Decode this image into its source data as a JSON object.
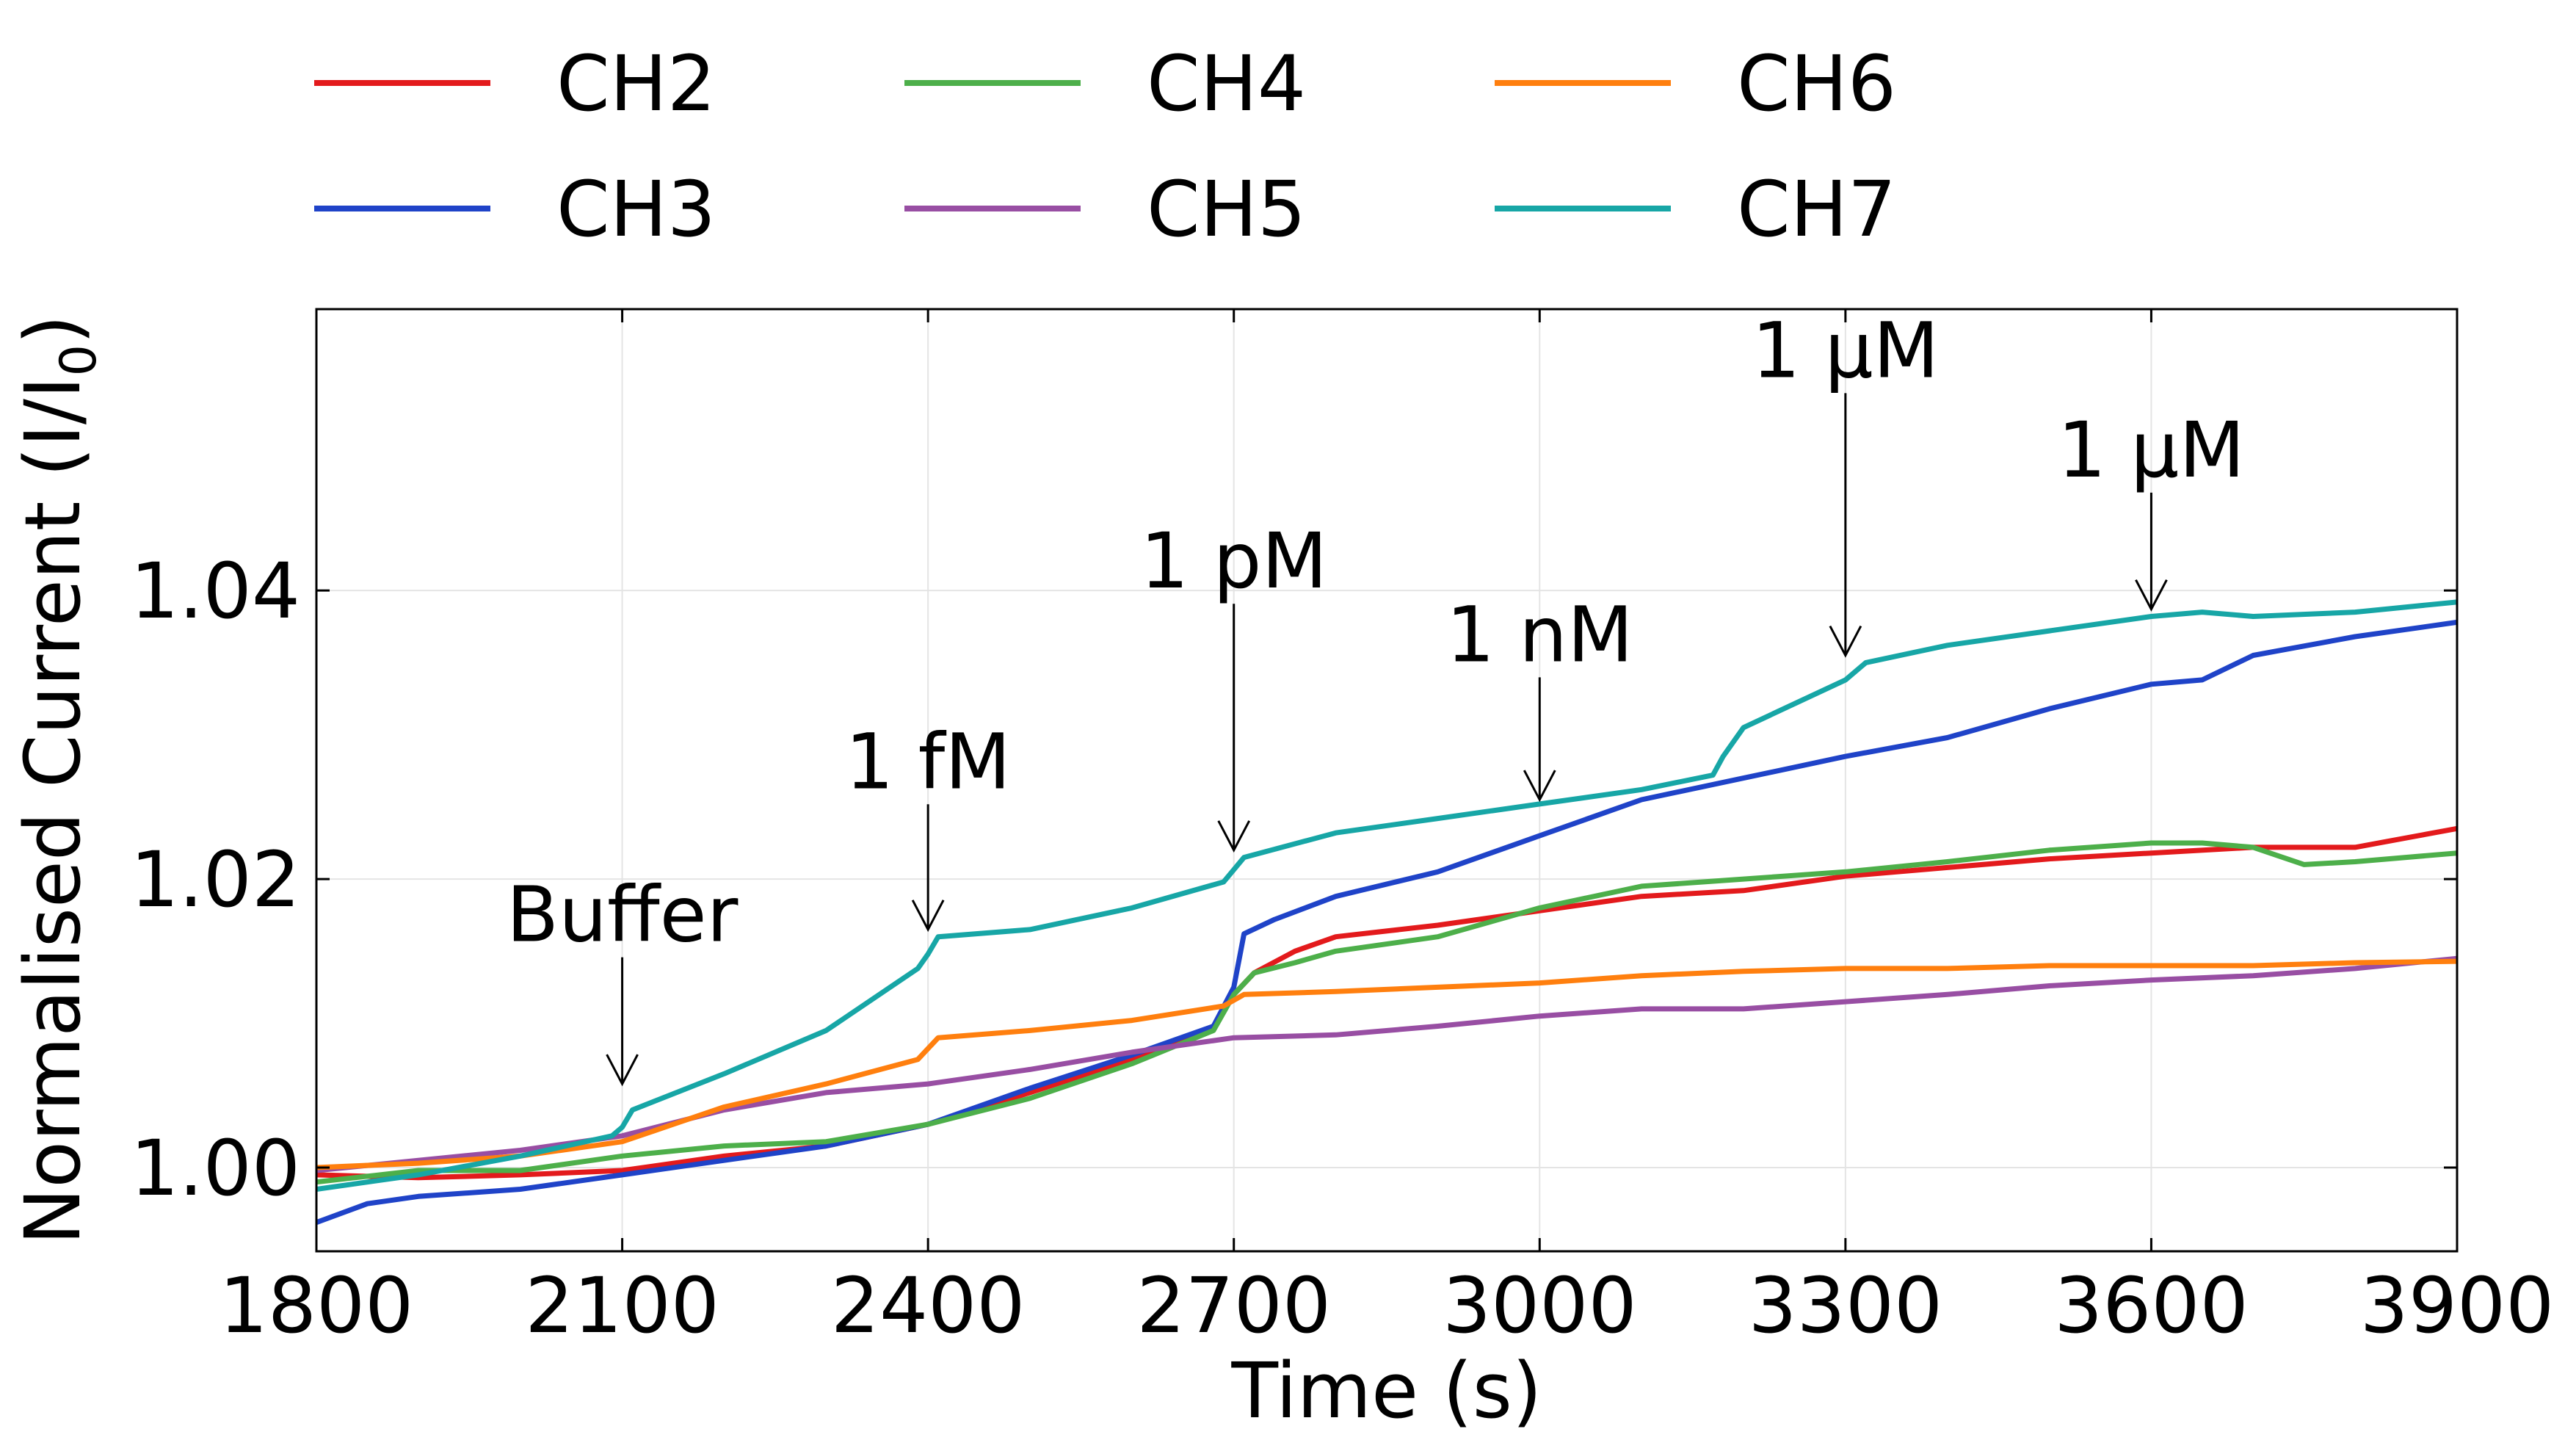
{
  "chart_data": {
    "type": "line",
    "title": "",
    "xlabel": "Time (s)",
    "ylabel_main": "Normalised Current (I/I",
    "ylabel_sub": "0",
    "ylabel_close": ")",
    "xlim": [
      1800,
      3900
    ],
    "ylim": [
      0.9942,
      1.0595
    ],
    "xticks": [
      1800,
      2100,
      2400,
      2700,
      3000,
      3300,
      3600,
      3900
    ],
    "xtick_labels": [
      "1800",
      "2100",
      "2400",
      "2700",
      "3000",
      "3300",
      "3600",
      "3900"
    ],
    "yticks": [
      1.0,
      1.02,
      1.04
    ],
    "ytick_labels": [
      "1.00",
      "1.02",
      "1.04"
    ],
    "grid": true,
    "legend_position": "top, above plot",
    "series": [
      {
        "name": "CH2",
        "color": "#e31a1c",
        "x": [
          1800,
          1900,
          2000,
          2100,
          2200,
          2300,
          2400,
          2500,
          2600,
          2680,
          2700,
          2720,
          2760,
          2800,
          2900,
          3000,
          3100,
          3200,
          3300,
          3400,
          3500,
          3600,
          3700,
          3800,
          3900
        ],
        "y": [
          0.9995,
          0.9993,
          0.9995,
          0.9998,
          1.0008,
          1.0015,
          1.003,
          1.0052,
          1.0075,
          1.0098,
          1.012,
          1.0135,
          1.015,
          1.016,
          1.0168,
          1.0178,
          1.0188,
          1.0192,
          1.0202,
          1.0208,
          1.0214,
          1.0218,
          1.0222,
          1.0222,
          1.0235
        ]
      },
      {
        "name": "CH3",
        "color": "#1f43c8",
        "x": [
          1800,
          1850,
          1900,
          2000,
          2100,
          2200,
          2300,
          2400,
          2500,
          2600,
          2680,
          2700,
          2710,
          2740,
          2800,
          2900,
          3000,
          3100,
          3200,
          3300,
          3400,
          3500,
          3600,
          3650,
          3700,
          3800,
          3900
        ],
        "y": [
          0.9962,
          0.9975,
          0.998,
          0.9985,
          0.9995,
          1.0005,
          1.0015,
          1.003,
          1.0055,
          1.0078,
          1.0098,
          1.0125,
          1.0162,
          1.0172,
          1.0188,
          1.0205,
          1.023,
          1.0255,
          1.027,
          1.0285,
          1.0298,
          1.0318,
          1.0335,
          1.0338,
          1.0355,
          1.0368,
          1.0378
        ]
      },
      {
        "name": "CH4",
        "color": "#4daf4a",
        "x": [
          1800,
          1900,
          2000,
          2100,
          2200,
          2300,
          2400,
          2500,
          2600,
          2680,
          2700,
          2720,
          2760,
          2800,
          2900,
          3000,
          3100,
          3200,
          3300,
          3400,
          3500,
          3600,
          3650,
          3700,
          3750,
          3800,
          3900
        ],
        "y": [
          0.999,
          0.9998,
          0.9998,
          1.0008,
          1.0015,
          1.0018,
          1.003,
          1.0048,
          1.0072,
          1.0095,
          1.012,
          1.0135,
          1.0142,
          1.015,
          1.016,
          1.018,
          1.0195,
          1.02,
          1.0205,
          1.0212,
          1.022,
          1.0225,
          1.0225,
          1.0222,
          1.021,
          1.0212,
          1.0218
        ]
      },
      {
        "name": "CH5",
        "color": "#984ea3",
        "x": [
          1800,
          1900,
          2000,
          2100,
          2200,
          2300,
          2400,
          2500,
          2600,
          2700,
          2800,
          2900,
          3000,
          3100,
          3200,
          3300,
          3400,
          3500,
          3600,
          3700,
          3800,
          3900
        ],
        "y": [
          0.9998,
          1.0005,
          1.0012,
          1.0022,
          1.004,
          1.0052,
          1.0058,
          1.0068,
          1.008,
          1.009,
          1.0092,
          1.0098,
          1.0105,
          1.011,
          1.011,
          1.0115,
          1.012,
          1.0126,
          1.013,
          1.0133,
          1.0138,
          1.0145
        ]
      },
      {
        "name": "CH6",
        "color": "#ff7f0e",
        "x": [
          1800,
          1900,
          2000,
          2100,
          2150,
          2200,
          2300,
          2390,
          2410,
          2500,
          2600,
          2690,
          2710,
          2800,
          2900,
          3000,
          3100,
          3200,
          3300,
          3400,
          3500,
          3600,
          3700,
          3800,
          3900
        ],
        "y": [
          1.0,
          1.0003,
          1.0008,
          1.0018,
          1.003,
          1.0042,
          1.0058,
          1.0075,
          1.009,
          1.0095,
          1.0102,
          1.0112,
          1.012,
          1.0122,
          1.0125,
          1.0128,
          1.0133,
          1.0136,
          1.0138,
          1.0138,
          1.014,
          1.014,
          1.014,
          1.0142,
          1.0143
        ]
      },
      {
        "name": "CH7",
        "color": "#17a6a6",
        "x": [
          1800,
          1900,
          2000,
          2090,
          2100,
          2110,
          2200,
          2300,
          2390,
          2400,
          2410,
          2500,
          2600,
          2690,
          2710,
          2800,
          2900,
          3000,
          3100,
          3170,
          3180,
          3200,
          3300,
          3320,
          3400,
          3500,
          3600,
          3650,
          3700,
          3800,
          3900
        ],
        "y": [
          0.9985,
          0.9995,
          1.0008,
          1.0022,
          1.0028,
          1.004,
          1.0065,
          1.0095,
          1.0138,
          1.0148,
          1.016,
          1.0165,
          1.018,
          1.0198,
          1.0215,
          1.0232,
          1.0242,
          1.0252,
          1.0262,
          1.0272,
          1.0285,
          1.0305,
          1.0338,
          1.035,
          1.0362,
          1.0372,
          1.0382,
          1.0385,
          1.0382,
          1.0385,
          1.0392
        ]
      }
    ],
    "annotations": [
      {
        "text": "Buffer",
        "x": 2100,
        "y": 1.0058,
        "label_lift": 0.0099
      },
      {
        "text": "1 fM",
        "x": 2400,
        "y": 1.0165,
        "label_lift": 0.0098
      },
      {
        "text": "1 pM",
        "x": 2700,
        "y": 1.022,
        "label_lift": 0.0182
      },
      {
        "text": "1 nM",
        "x": 3000,
        "y": 1.0255,
        "label_lift": 0.0096
      },
      {
        "text": "1 μM",
        "x": 3300,
        "y": 1.0355,
        "label_lift": 0.0193
      },
      {
        "text": "1 μM",
        "x": 3600,
        "y": 1.0387,
        "label_lift": 0.0092
      }
    ]
  }
}
